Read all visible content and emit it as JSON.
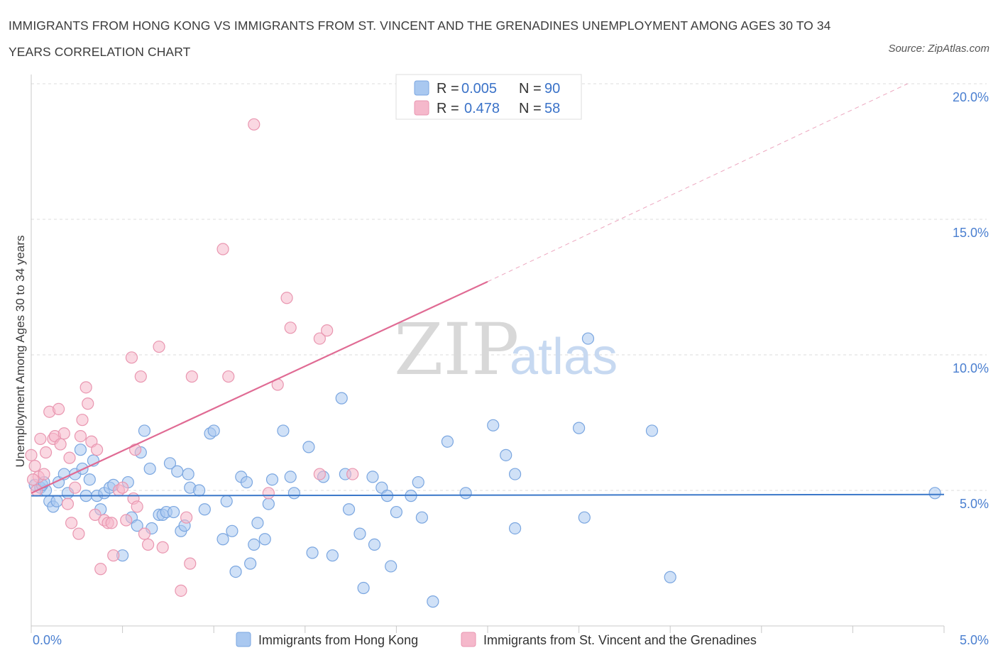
{
  "title": "IMMIGRANTS FROM HONG KONG VS IMMIGRANTS FROM ST. VINCENT AND THE GRENADINES UNEMPLOYMENT AMONG AGES 30 TO 34 YEARS CORRELATION CHART",
  "source": "Source: ZipAtlas.com",
  "watermark": {
    "zip": "ZIP",
    "atlas": "atlas"
  },
  "colors": {
    "blue_fill": "#a9c8f0",
    "blue_stroke": "#7aa6e0",
    "blue_line": "#3b78c9",
    "pink_fill": "#f5b8cb",
    "pink_stroke": "#e996b0",
    "pink_line": "#e06b94",
    "grid": "#dddddd",
    "axis_text": "#4a7fd0"
  },
  "legend": {
    "rows": [
      {
        "r_label": "R =",
        "r_value": "0.005",
        "n_label": "N =",
        "n_value": "90"
      },
      {
        "r_label": "R =",
        "r_value": "0.478",
        "n_label": "N =",
        "n_value": "58"
      }
    ]
  },
  "bottom_legend": [
    "Immigrants from Hong Kong",
    "Immigrants from St. Vincent and the Grenadines"
  ],
  "chart_data": {
    "type": "scatter",
    "ylabel": "Unemployment Among Ages 30 to 34 years",
    "xlim": [
      0,
      5
    ],
    "ylim": [
      0,
      20
    ],
    "x_tick_labels": [
      "0.0%",
      "5.0%"
    ],
    "y_tick_labels": [
      "5.0%",
      "10.0%",
      "15.0%",
      "20.0%"
    ],
    "y_ticks": [
      5,
      10,
      15,
      20
    ],
    "grid": true,
    "series": [
      {
        "name": "Immigrants from Hong Kong",
        "trend": {
          "x0": 0.0,
          "y0": 4.8,
          "x1": 5.0,
          "y1": 4.85
        },
        "points": [
          [
            0.02,
            5.2
          ],
          [
            0.05,
            5.1
          ],
          [
            0.08,
            5.0
          ],
          [
            0.1,
            4.6
          ],
          [
            0.12,
            4.4
          ],
          [
            0.14,
            4.6
          ],
          [
            0.15,
            5.3
          ],
          [
            0.18,
            5.6
          ],
          [
            0.2,
            4.9
          ],
          [
            0.24,
            5.6
          ],
          [
            0.27,
            6.5
          ],
          [
            0.28,
            5.8
          ],
          [
            0.3,
            4.8
          ],
          [
            0.32,
            5.4
          ],
          [
            0.34,
            6.1
          ],
          [
            0.36,
            4.8
          ],
          [
            0.38,
            4.3
          ],
          [
            0.4,
            4.9
          ],
          [
            0.43,
            5.1
          ],
          [
            0.45,
            5.2
          ],
          [
            0.5,
            2.6
          ],
          [
            0.53,
            5.3
          ],
          [
            0.55,
            4.0
          ],
          [
            0.58,
            3.7
          ],
          [
            0.6,
            6.4
          ],
          [
            0.62,
            7.2
          ],
          [
            0.65,
            5.8
          ],
          [
            0.66,
            3.6
          ],
          [
            0.7,
            4.1
          ],
          [
            0.72,
            4.1
          ],
          [
            0.74,
            4.2
          ],
          [
            0.76,
            6.0
          ],
          [
            0.78,
            4.2
          ],
          [
            0.8,
            5.7
          ],
          [
            0.82,
            3.5
          ],
          [
            0.84,
            3.7
          ],
          [
            0.86,
            5.6
          ],
          [
            0.87,
            5.1
          ],
          [
            0.92,
            5.0
          ],
          [
            0.95,
            4.3
          ],
          [
            0.98,
            7.1
          ],
          [
            1.0,
            7.2
          ],
          [
            1.05,
            3.2
          ],
          [
            1.07,
            4.6
          ],
          [
            1.1,
            3.5
          ],
          [
            1.12,
            2.0
          ],
          [
            1.15,
            5.5
          ],
          [
            1.18,
            5.3
          ],
          [
            1.2,
            2.3
          ],
          [
            1.22,
            3.0
          ],
          [
            1.24,
            3.8
          ],
          [
            1.28,
            3.2
          ],
          [
            1.3,
            4.5
          ],
          [
            1.32,
            5.4
          ],
          [
            1.38,
            7.2
          ],
          [
            1.42,
            5.5
          ],
          [
            1.44,
            4.9
          ],
          [
            1.52,
            6.6
          ],
          [
            1.54,
            2.7
          ],
          [
            1.6,
            5.5
          ],
          [
            1.65,
            2.6
          ],
          [
            1.7,
            8.4
          ],
          [
            1.72,
            5.6
          ],
          [
            1.74,
            4.3
          ],
          [
            1.8,
            3.4
          ],
          [
            1.82,
            1.4
          ],
          [
            1.87,
            5.5
          ],
          [
            1.88,
            3.0
          ],
          [
            1.92,
            5.1
          ],
          [
            1.95,
            4.8
          ],
          [
            1.97,
            2.2
          ],
          [
            2.0,
            4.2
          ],
          [
            2.08,
            4.8
          ],
          [
            2.12,
            5.3
          ],
          [
            2.14,
            4.0
          ],
          [
            2.2,
            0.9
          ],
          [
            2.28,
            6.8
          ],
          [
            2.38,
            4.9
          ],
          [
            2.53,
            7.4
          ],
          [
            2.6,
            6.3
          ],
          [
            2.65,
            5.6
          ],
          [
            2.65,
            3.6
          ],
          [
            3.0,
            7.3
          ],
          [
            3.03,
            4.0
          ],
          [
            3.05,
            10.6
          ],
          [
            3.4,
            7.2
          ],
          [
            3.5,
            1.8
          ],
          [
            4.95,
            4.9
          ],
          [
            0.06,
            5.2
          ],
          [
            0.07,
            5.3
          ]
        ]
      },
      {
        "name": "Immigrants from St. Vincent and the Grenadines",
        "trend": {
          "x0": 0.0,
          "y0": 4.9,
          "x1": 2.5,
          "y1": 12.7
        },
        "trend_dashed": {
          "x0": 2.5,
          "y0": 12.7,
          "x1": 4.8,
          "y1": 20.0
        },
        "points": [
          [
            0.0,
            6.3
          ],
          [
            0.02,
            5.9
          ],
          [
            0.04,
            5.5
          ],
          [
            0.05,
            6.9
          ],
          [
            0.07,
            5.6
          ],
          [
            0.08,
            6.4
          ],
          [
            0.1,
            7.9
          ],
          [
            0.12,
            6.9
          ],
          [
            0.13,
            7.0
          ],
          [
            0.15,
            8.0
          ],
          [
            0.16,
            6.7
          ],
          [
            0.18,
            7.1
          ],
          [
            0.2,
            4.5
          ],
          [
            0.21,
            6.2
          ],
          [
            0.22,
            3.8
          ],
          [
            0.24,
            5.1
          ],
          [
            0.26,
            3.4
          ],
          [
            0.27,
            7.0
          ],
          [
            0.28,
            7.6
          ],
          [
            0.3,
            8.8
          ],
          [
            0.31,
            8.2
          ],
          [
            0.33,
            6.8
          ],
          [
            0.35,
            4.1
          ],
          [
            0.36,
            6.5
          ],
          [
            0.38,
            2.1
          ],
          [
            0.4,
            3.9
          ],
          [
            0.42,
            3.8
          ],
          [
            0.44,
            3.8
          ],
          [
            0.45,
            2.6
          ],
          [
            0.48,
            5.0
          ],
          [
            0.5,
            5.1
          ],
          [
            0.52,
            3.9
          ],
          [
            0.55,
            9.9
          ],
          [
            0.56,
            4.7
          ],
          [
            0.57,
            6.5
          ],
          [
            0.58,
            4.4
          ],
          [
            0.6,
            9.2
          ],
          [
            0.62,
            3.4
          ],
          [
            0.64,
            3.0
          ],
          [
            0.7,
            10.3
          ],
          [
            0.72,
            2.9
          ],
          [
            0.82,
            1.3
          ],
          [
            0.85,
            4.0
          ],
          [
            0.87,
            2.3
          ],
          [
            0.88,
            9.2
          ],
          [
            1.05,
            13.9
          ],
          [
            1.08,
            9.2
          ],
          [
            1.22,
            18.5
          ],
          [
            1.3,
            4.9
          ],
          [
            1.35,
            8.9
          ],
          [
            1.4,
            12.1
          ],
          [
            1.42,
            11.0
          ],
          [
            1.58,
            10.6
          ],
          [
            1.62,
            10.9
          ],
          [
            1.58,
            5.6
          ],
          [
            1.76,
            5.6
          ],
          [
            0.01,
            5.4
          ],
          [
            0.03,
            5.0
          ]
        ]
      }
    ]
  }
}
